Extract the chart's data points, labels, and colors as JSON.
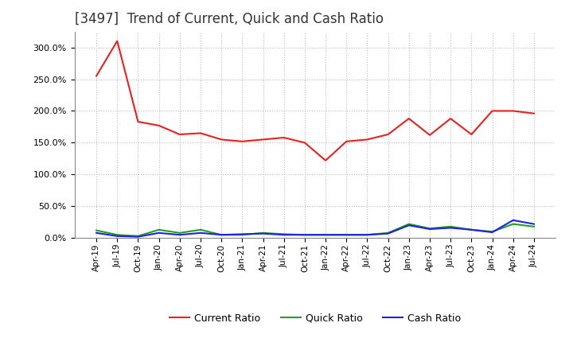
{
  "title": "[3497]  Trend of Current, Quick and Cash Ratio",
  "ylim": [
    0,
    325
  ],
  "yticks": [
    0,
    50,
    100,
    150,
    200,
    250,
    300
  ],
  "background_color": "#ffffff",
  "grid_color": "#bbbbbb",
  "tick_labels": [
    "Apr-19",
    "Jul-19",
    "Oct-19",
    "Jan-20",
    "Apr-20",
    "Jul-20",
    "Oct-20",
    "Jan-21",
    "Apr-21",
    "Jul-21",
    "Oct-21",
    "Jan-22",
    "Apr-22",
    "Jul-22",
    "Oct-22",
    "Jan-23",
    "Apr-23",
    "Jul-23",
    "Oct-23",
    "Jan-24",
    "Apr-24",
    "Jul-24"
  ],
  "current_ratio": [
    255,
    310,
    183,
    177,
    163,
    165,
    155,
    152,
    155,
    158,
    150,
    122,
    152,
    155,
    163,
    188,
    162,
    188,
    163,
    200,
    200,
    196
  ],
  "quick_ratio": [
    12,
    5,
    3,
    13,
    8,
    13,
    5,
    5,
    8,
    6,
    5,
    5,
    5,
    5,
    8,
    22,
    15,
    18,
    13,
    10,
    22,
    18
  ],
  "cash_ratio": [
    8,
    3,
    2,
    8,
    5,
    8,
    5,
    6,
    7,
    5,
    5,
    5,
    5,
    5,
    7,
    20,
    14,
    16,
    13,
    9,
    28,
    22
  ],
  "current_color": "#e82020",
  "quick_color": "#20a020",
  "cash_color": "#2020e8",
  "line_width": 1.5,
  "title_fontsize": 12,
  "legend_fontsize": 9,
  "tick_fontsize": 7.5,
  "ytick_fontsize": 8
}
